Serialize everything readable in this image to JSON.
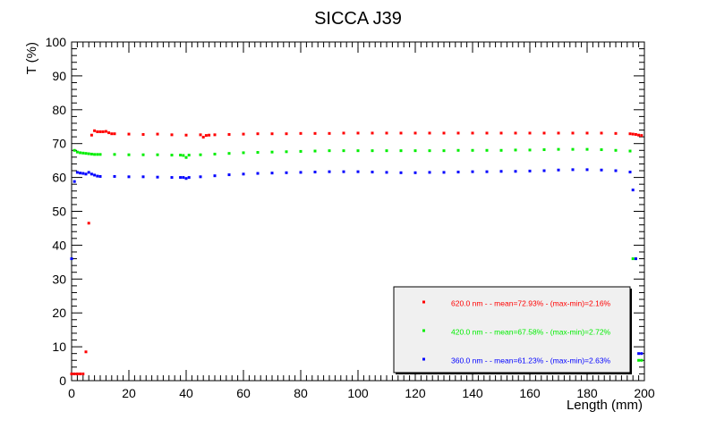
{
  "chart_data": {
    "type": "scatter",
    "title": "SICCA J39",
    "xlabel": "Length (mm)",
    "ylabel": "T (%)",
    "xlim": [
      0,
      200
    ],
    "ylim": [
      0,
      100
    ],
    "xticks": [
      0,
      20,
      40,
      60,
      80,
      100,
      120,
      140,
      160,
      180,
      200
    ],
    "yticks": [
      0,
      10,
      20,
      30,
      40,
      50,
      60,
      70,
      80,
      90,
      100
    ],
    "grid": false,
    "legend_position": "bottom-right",
    "series": [
      {
        "name": "620.0 nm -  - mean=72.93% - (max-min)=2.16%",
        "color": "#ff0000",
        "x": [
          0,
          1,
          2,
          3,
          4,
          5,
          6,
          7,
          8,
          9,
          10,
          11,
          12,
          13,
          14,
          15,
          20,
          25,
          30,
          35,
          40,
          45,
          46,
          47,
          48,
          50,
          55,
          60,
          65,
          70,
          75,
          80,
          85,
          90,
          95,
          100,
          105,
          110,
          115,
          120,
          125,
          130,
          135,
          140,
          145,
          150,
          155,
          160,
          165,
          170,
          175,
          180,
          185,
          190,
          195,
          196,
          197,
          198,
          199
        ],
        "y": [
          2,
          2,
          2,
          2,
          2,
          8.5,
          46.5,
          72.5,
          73.8,
          73.5,
          73.5,
          73.5,
          73.6,
          73.2,
          72.9,
          72.9,
          72.8,
          72.7,
          72.8,
          72.6,
          72.5,
          72.6,
          71.9,
          72.4,
          72.5,
          72.6,
          72.7,
          72.8,
          72.9,
          72.9,
          72.9,
          73.0,
          73.0,
          73.0,
          73.1,
          73.1,
          73.1,
          73.1,
          73.1,
          73.1,
          73.1,
          73.1,
          73.1,
          73.1,
          73.1,
          73.1,
          73.1,
          73.1,
          73.1,
          73.1,
          73.1,
          73.1,
          73.1,
          73.0,
          72.9,
          72.8,
          72.7,
          72.5,
          72.4
        ]
      },
      {
        "name": "420.0 nm -  - mean=67.58% - (max-min)=2.72%",
        "color": "#00ee00",
        "x": [
          0,
          1,
          2,
          3,
          4,
          5,
          6,
          7,
          8,
          9,
          10,
          15,
          20,
          25,
          30,
          35,
          38,
          39,
          40,
          41,
          45,
          50,
          55,
          60,
          65,
          70,
          75,
          80,
          85,
          90,
          95,
          100,
          105,
          110,
          115,
          120,
          125,
          130,
          135,
          140,
          145,
          150,
          155,
          160,
          165,
          170,
          175,
          180,
          185,
          190,
          195,
          196,
          197,
          198,
          199
        ],
        "y": [
          36,
          68,
          67.5,
          67.3,
          67.2,
          67.1,
          67.0,
          66.9,
          66.8,
          66.8,
          66.8,
          66.8,
          66.7,
          66.7,
          66.7,
          66.6,
          66.6,
          66.5,
          65.9,
          66.6,
          66.7,
          66.9,
          67.1,
          67.3,
          67.4,
          67.5,
          67.6,
          67.7,
          67.8,
          67.9,
          67.9,
          67.9,
          67.9,
          67.9,
          67.9,
          67.9,
          67.9,
          67.9,
          68.0,
          68.0,
          68.0,
          68.0,
          68.1,
          68.1,
          68.2,
          68.3,
          68.3,
          68.3,
          68.2,
          68.0,
          67.8,
          36,
          36,
          6,
          6
        ]
      },
      {
        "name": "360.0 nm -  - mean=61.23% - (max-min)=2.63%",
        "color": "#0000ff",
        "x": [
          0,
          1,
          2,
          3,
          4,
          5,
          6,
          7,
          8,
          9,
          10,
          15,
          20,
          25,
          30,
          35,
          38,
          39,
          40,
          41,
          45,
          50,
          55,
          60,
          65,
          70,
          75,
          80,
          85,
          90,
          95,
          100,
          105,
          110,
          115,
          120,
          125,
          130,
          135,
          140,
          145,
          150,
          155,
          160,
          165,
          170,
          175,
          180,
          185,
          190,
          195,
          196,
          197,
          198,
          199
        ],
        "y": [
          36,
          58.8,
          61.5,
          61.3,
          61.2,
          61.0,
          61.5,
          61.0,
          60.7,
          60.4,
          60.3,
          60.3,
          60.2,
          60.2,
          60.1,
          60.0,
          60.0,
          60.0,
          59.7,
          60.0,
          60.2,
          60.5,
          60.8,
          61.0,
          61.2,
          61.3,
          61.4,
          61.5,
          61.6,
          61.7,
          61.7,
          61.7,
          61.6,
          61.5,
          61.4,
          61.4,
          61.5,
          61.5,
          61.6,
          61.7,
          61.7,
          61.8,
          61.8,
          61.9,
          62.0,
          62.2,
          62.3,
          62.3,
          62.2,
          62.0,
          61.6,
          56.3,
          36,
          8,
          8
        ]
      }
    ]
  }
}
